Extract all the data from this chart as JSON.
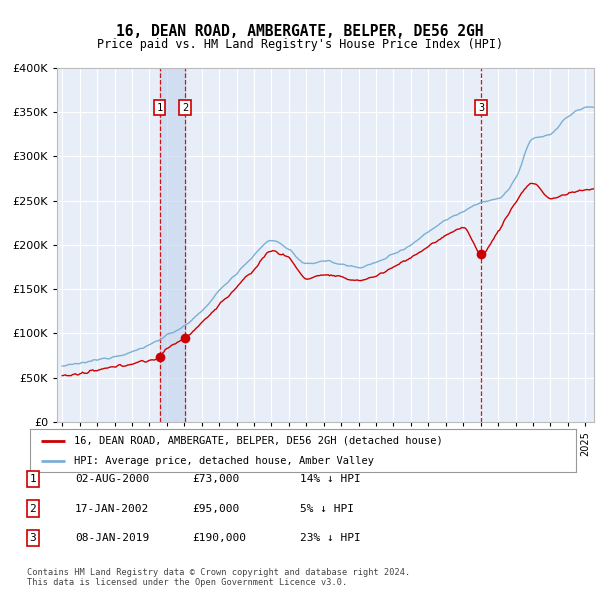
{
  "title": "16, DEAN ROAD, AMBERGATE, BELPER, DE56 2GH",
  "subtitle": "Price paid vs. HM Land Registry's House Price Index (HPI)",
  "legend_line1": "16, DEAN ROAD, AMBERGATE, BELPER, DE56 2GH (detached house)",
  "legend_line2": "HPI: Average price, detached house, Amber Valley",
  "transactions": [
    {
      "num": 1,
      "date": "02-AUG-2000",
      "price": 73000,
      "pct": "14%",
      "dir": "↓"
    },
    {
      "num": 2,
      "date": "17-JAN-2002",
      "price": 95000,
      "pct": "5%",
      "dir": "↓"
    },
    {
      "num": 3,
      "date": "08-JAN-2019",
      "price": 190000,
      "pct": "23%",
      "dir": "↓"
    }
  ],
  "transaction_years": [
    2000.58,
    2002.04,
    2019.02
  ],
  "transaction_prices": [
    73000,
    95000,
    190000
  ],
  "footer": "Contains HM Land Registry data © Crown copyright and database right 2024.\nThis data is licensed under the Open Government Licence v3.0.",
  "ylim": [
    0,
    400000
  ],
  "yticks": [
    0,
    50000,
    100000,
    150000,
    200000,
    250000,
    300000,
    350000,
    400000
  ],
  "color_red": "#cc0000",
  "color_blue": "#7bafd4",
  "color_dashed": "#cc0000",
  "bg_plot": "#e8eef8",
  "bg_fig": "#ffffff",
  "grid_color": "#ffffff",
  "shade_color": "#c8d8f0"
}
